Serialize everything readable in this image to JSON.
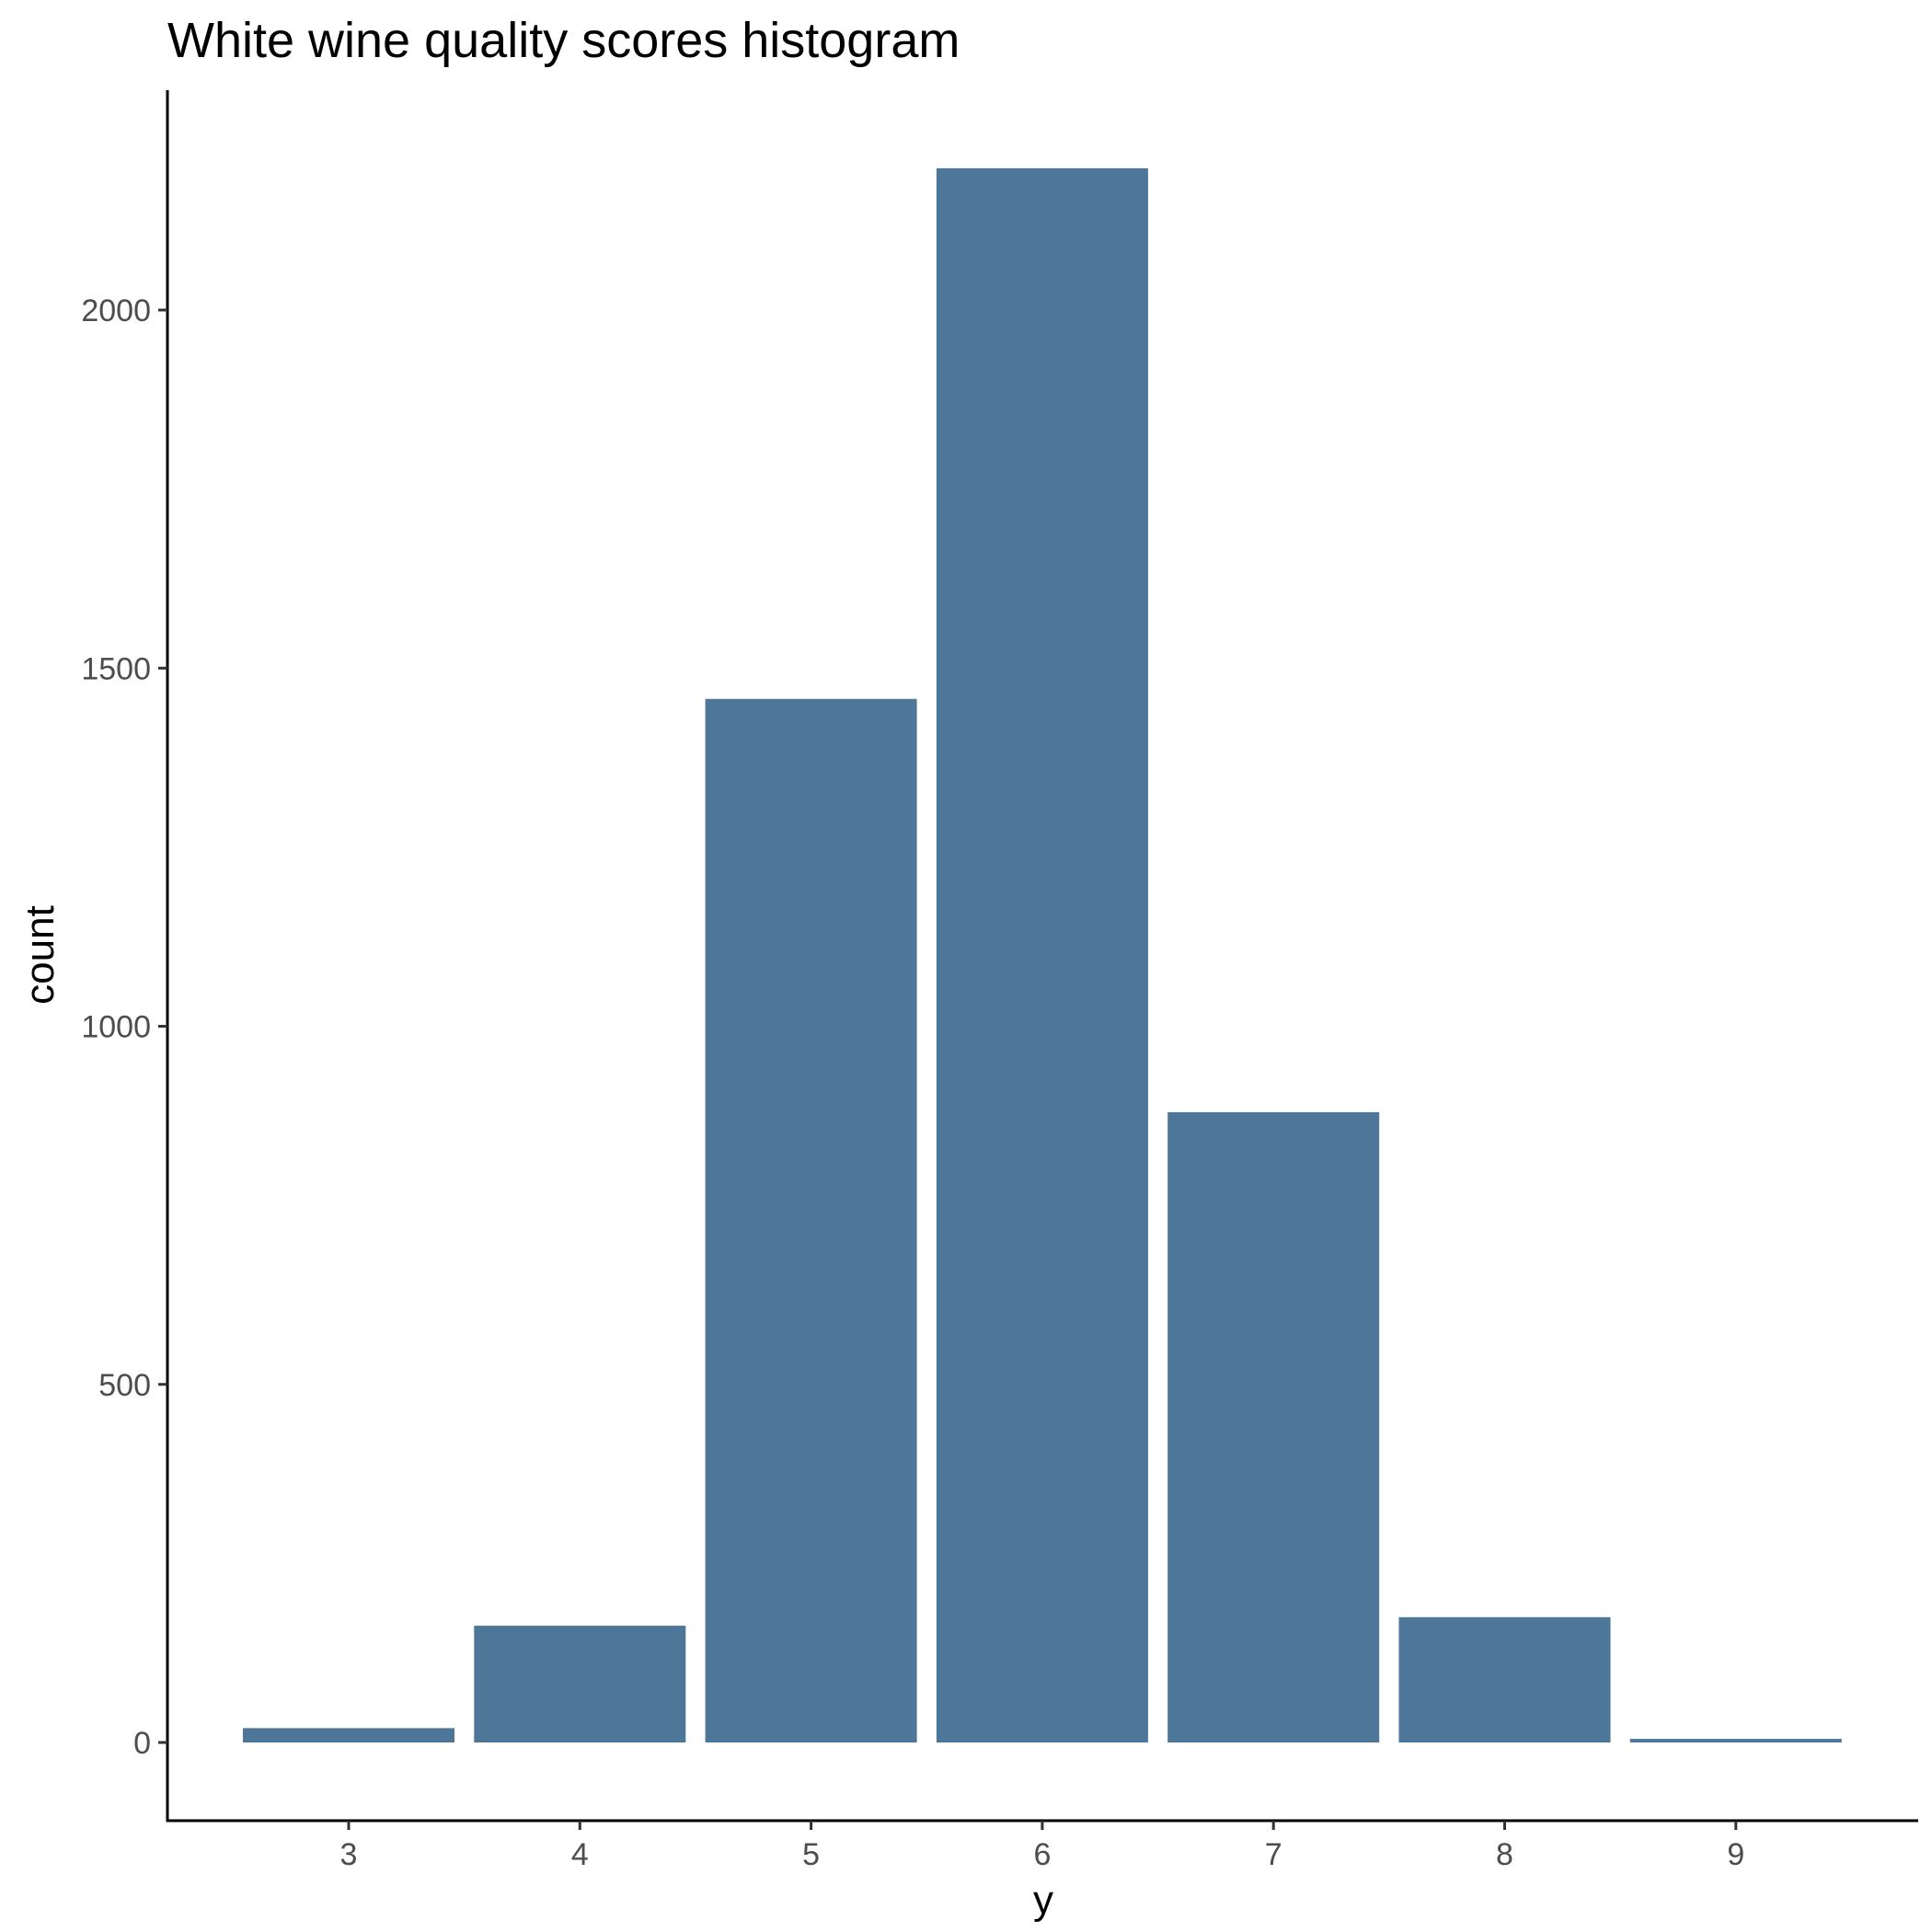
{
  "chart_data": {
    "type": "bar",
    "title": "White wine quality scores histogram",
    "xlabel": "y",
    "ylabel": "count",
    "categories": [
      "3",
      "4",
      "5",
      "6",
      "7",
      "8",
      "9"
    ],
    "values": [
      20,
      163,
      1457,
      2198,
      880,
      175,
      5
    ],
    "yticks": [
      "0",
      "500",
      "1000",
      "1500",
      "2000"
    ],
    "ylim": [
      -107,
      2308
    ],
    "grid": false,
    "bar_color": "#4d7698"
  }
}
